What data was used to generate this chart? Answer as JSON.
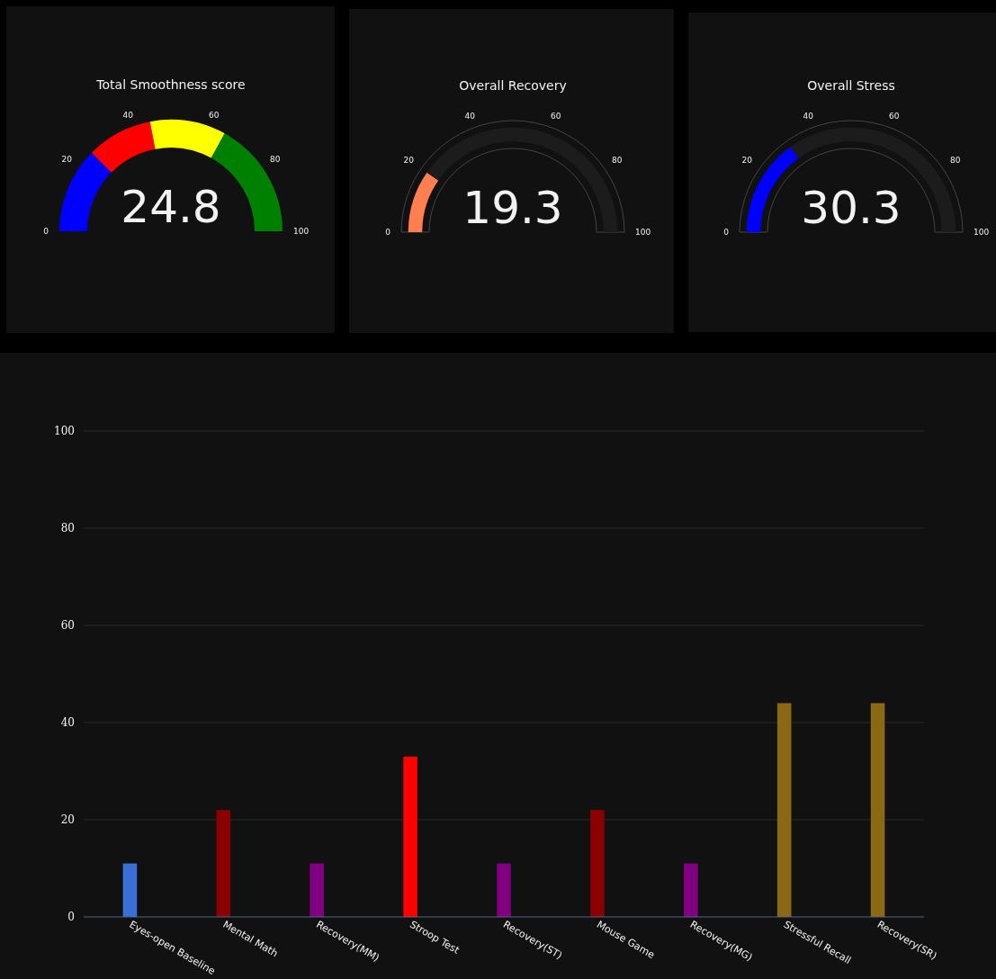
{
  "chart_data": [
    {
      "type": "donut",
      "title": "Total Smoothness score",
      "categories": [
        null,
        null,
        null,
        null
      ],
      "values": [
        24.8,
        19.2,
        22,
        34
      ],
      "colors": [
        "#0000ff",
        "#ff0000",
        "#ffff00",
        "#008000"
      ],
      "annotations": [
        "24.8",
        "0",
        "20",
        "40",
        "60",
        "80",
        "100"
      ]
    },
    {
      "type": "donut",
      "title": "Overall Recovery",
      "categories": [
        null,
        null
      ],
      "values": [
        19.3,
        80.7
      ],
      "colors": [
        "#ff7f50",
        "#1c1c1c"
      ],
      "annotations": [
        "19.3",
        "0",
        "20",
        "40",
        "60",
        "80",
        "100"
      ]
    },
    {
      "type": "donut",
      "title": "Overall Stress",
      "categories": [
        null,
        null
      ],
      "values": [
        30.3,
        69.7
      ],
      "colors": [
        "#0000ff",
        "#1c1c1c"
      ],
      "annotations": [
        "30.3",
        "0",
        "20",
        "40",
        "60",
        "80",
        "100"
      ]
    },
    {
      "type": "bar",
      "categories": [
        "Eyes-open Baseline",
        "Mental Math",
        "Recovery(MM)",
        "Stroop Test",
        "Recovery(ST)",
        "Mouse Game",
        "Recovery(MG)",
        "Stressful Recall",
        "Recovery(SR)"
      ],
      "values": [
        11,
        22,
        11,
        33,
        11,
        22,
        11,
        44,
        44
      ],
      "colors": [
        "#3a6fd8",
        "#8b0000",
        "#800080",
        "#ff0000",
        "#800080",
        "#8b0000",
        "#800080",
        "#8b6914",
        "#8b6914"
      ],
      "ylim": [
        0,
        100
      ],
      "yticks": [
        0,
        20,
        40,
        60,
        80,
        100
      ],
      "grid": "y"
    }
  ]
}
